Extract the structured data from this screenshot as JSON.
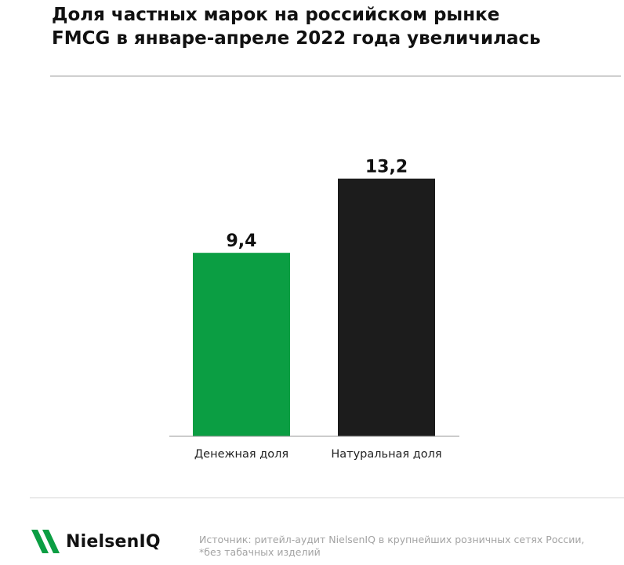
{
  "title_lines": [
    "Доля частных марок на российском рынке",
    "FMCG в январе-апреле 2022 года увеличилась"
  ],
  "chart_data": {
    "type": "bar",
    "categories": [
      "Денежная доля",
      "Натуральная доля"
    ],
    "values": [
      9.4,
      13.2
    ],
    "value_labels": [
      "9,4",
      "13,2"
    ],
    "ylim": [
      0,
      16
    ],
    "grid": false,
    "colors": [
      "#0b9e43",
      "#1c1c1c"
    ]
  },
  "footer": {
    "brand": "NielsenIQ",
    "brand_color": "#0b9e43",
    "source_lines": [
      "Источник: ритейл-аудит NielsenIQ в крупнейших розничных сетях России,",
      "*без табачных изделий"
    ]
  }
}
